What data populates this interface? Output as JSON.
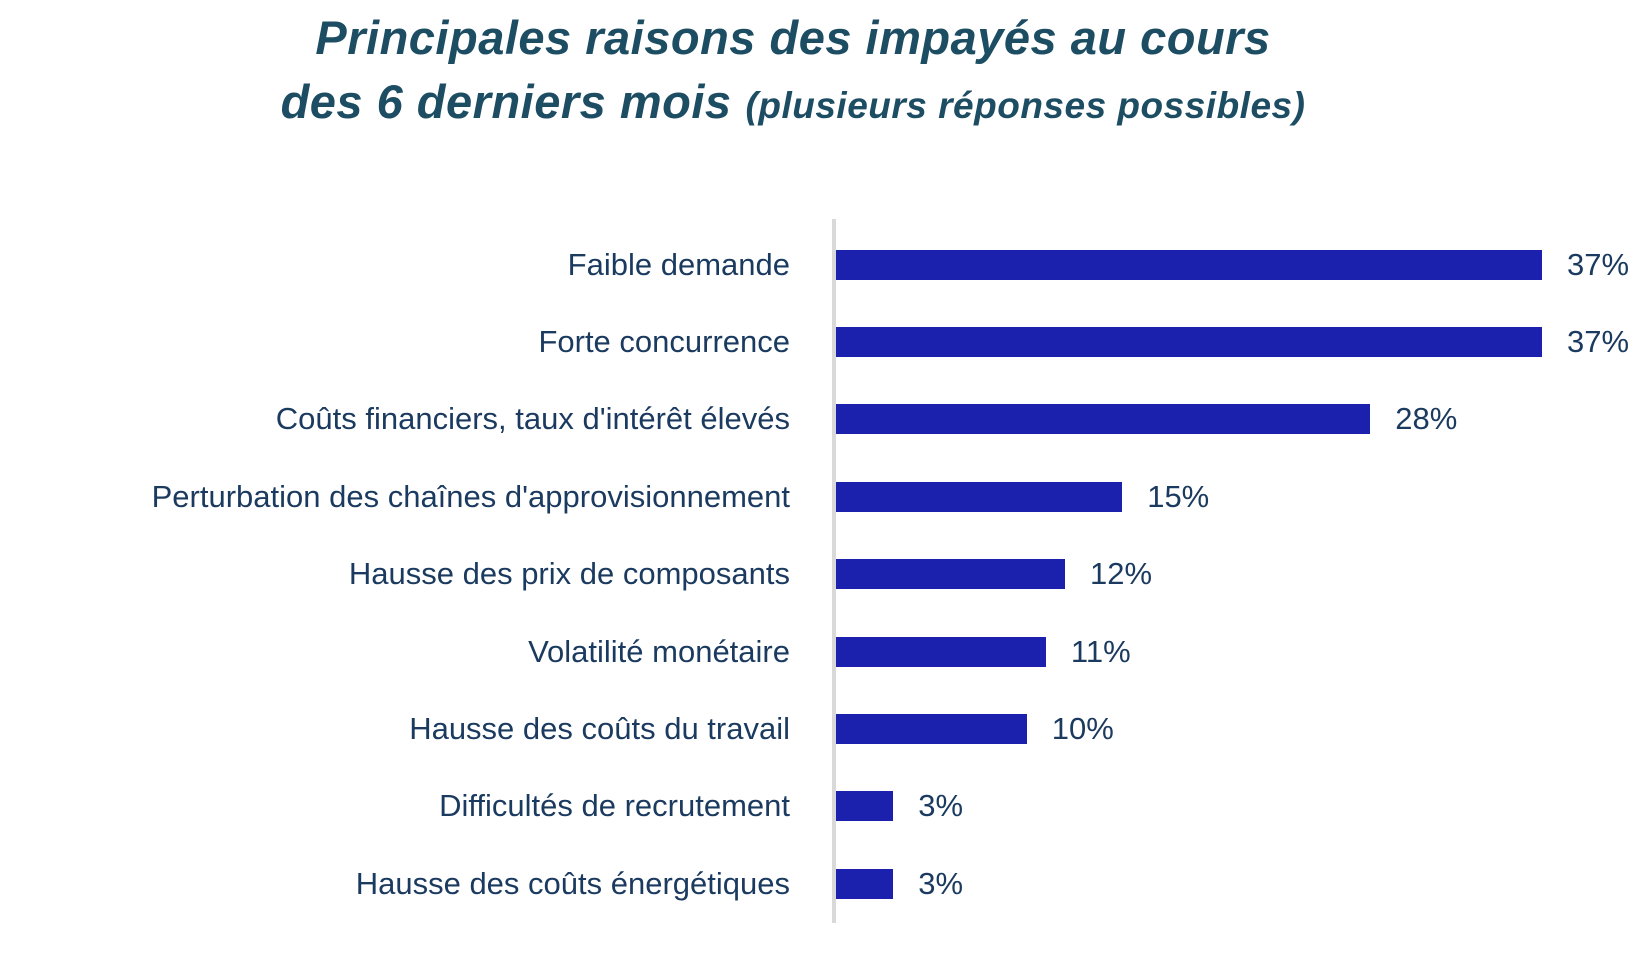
{
  "title": {
    "line1": "Principales raisons des impayés au cours",
    "line2_main": "des 6 derniers mois",
    "line2_note": "(plusieurs réponses possibles)"
  },
  "colors": {
    "bar": "#1B21AC",
    "title_text": "#1D4D63",
    "label_text": "#1B3A5F",
    "axis_line": "#D9D9D9"
  },
  "chart_data": {
    "type": "bar",
    "orientation": "horizontal",
    "title": "Principales raisons des impayés au cours des 6 derniers mois (plusieurs réponses possibles)",
    "categories": [
      "Faible demande",
      "Forte concurrence",
      "Coûts financiers, taux d'intérêt élevés",
      "Perturbation des chaînes d'approvisionnement",
      "Hausse des prix de composants",
      "Volatilité monétaire",
      "Hausse des coûts du travail",
      "Difficultés de recrutement",
      "Hausse des coûts énergétiques"
    ],
    "values": [
      37,
      37,
      28,
      15,
      12,
      11,
      10,
      3,
      3
    ],
    "value_labels": [
      "37%",
      "37%",
      "28%",
      "15%",
      "12%",
      "11%",
      "10%",
      "3%",
      "3%"
    ],
    "unit": "%",
    "xlabel": "",
    "ylabel": "",
    "xlim": [
      0,
      40
    ],
    "grid": false,
    "legend": false,
    "data_labels_position": "outside-end",
    "bar_color": "#1B21AC"
  }
}
